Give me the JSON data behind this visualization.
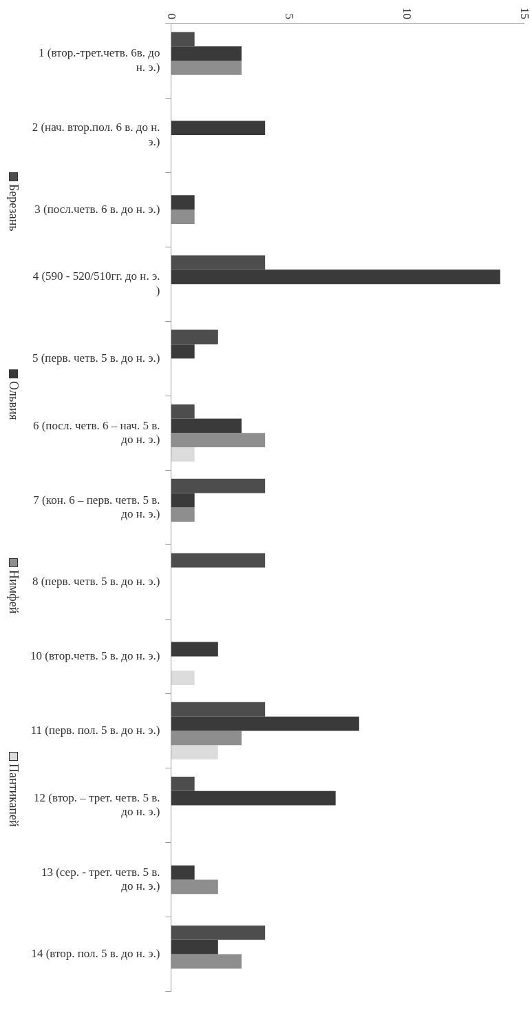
{
  "chart_data": {
    "type": "bar",
    "orientation": "horizontal",
    "categories": [
      "1 (втор.-трет.четв. 6в. до н. э.)",
      "2 (нач. втор.пол. 6 в. до н. э.)",
      "3 (посл.четв. 6 в. до н. э.)",
      "4 (590 - 520/510гг. до н. э. )",
      "5 (перв. четв. 5 в. до н. э.)",
      "6 (посл. четв. 6 – нач. 5 в. до н. э.)",
      "7 (кон. 6 – перв. четв. 5 в. до н. э.)",
      "8 (перв. четв. 5 в. до н. э.)",
      "10 (втор.четв. 5 в. до н. э.)",
      "11 (перв. пол. 5 в. до н. э.)",
      "12 (втор. – трет. четв. 5 в. до н. э.)",
      "13 (сер. - трет. четв. 5 в. до н. э.)",
      "14 (втор. пол. 5 в. до н. э.)"
    ],
    "series": [
      {
        "name": "Березань",
        "color": "#4d4d4d",
        "values": [
          1,
          null,
          null,
          4,
          2,
          1,
          4,
          4,
          null,
          4,
          1,
          null,
          4
        ]
      },
      {
        "name": "Ольвия",
        "color": "#3a3a3a",
        "values": [
          3,
          4,
          1,
          14,
          1,
          3,
          1,
          null,
          2,
          8,
          7,
          1,
          2
        ]
      },
      {
        "name": "Нимфей",
        "color": "#8e8e8e",
        "values": [
          3,
          null,
          1,
          null,
          null,
          4,
          1,
          null,
          null,
          3,
          null,
          2,
          3
        ]
      },
      {
        "name": "Пантикапей",
        "color": "#dcdcdc",
        "values": [
          null,
          null,
          null,
          null,
          null,
          1,
          null,
          null,
          1,
          2,
          null,
          null,
          null
        ]
      }
    ],
    "xlim": [
      0,
      15
    ],
    "xticks": [
      0,
      5,
      10,
      15
    ],
    "grid": false,
    "legend": "left"
  }
}
